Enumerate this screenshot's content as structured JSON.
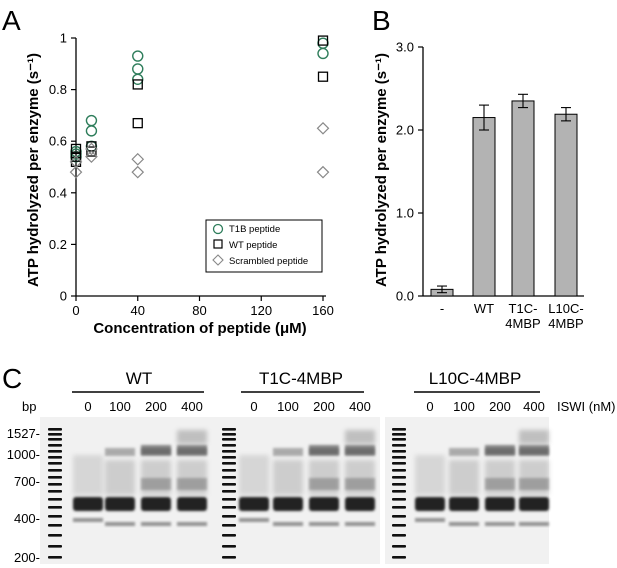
{
  "panels": {
    "a": "A",
    "b": "B",
    "c": "C"
  },
  "chart_data": [
    {
      "type": "scatter",
      "panel": "A",
      "xlabel": "Concentration of peptide (μM)",
      "ylabel": "ATP hydrolyzed per enzyme (s⁻¹)",
      "xlim": [
        0,
        160
      ],
      "ylim": [
        0,
        1
      ],
      "xticks": [
        "0",
        "40",
        "80",
        "120",
        "160"
      ],
      "yticks": [
        "0",
        "0.2",
        "0.4",
        "0.6",
        "0.8",
        "1"
      ],
      "legend_position": "bottom-right",
      "series": [
        {
          "name": "T1B peptide",
          "marker": "circle",
          "color": "#2e7d5b",
          "x": [
            0,
            0,
            0,
            10,
            10,
            10,
            40,
            40,
            40,
            160,
            160
          ],
          "y": [
            0.56,
            0.55,
            0.54,
            0.68,
            0.64,
            0.58,
            0.93,
            0.88,
            0.84,
            0.98,
            0.94
          ]
        },
        {
          "name": "WT peptide",
          "marker": "square",
          "color": "#000000",
          "x": [
            0,
            0,
            0,
            10,
            10,
            40,
            40,
            160,
            160
          ],
          "y": [
            0.57,
            0.54,
            0.52,
            0.58,
            0.56,
            0.82,
            0.67,
            0.99,
            0.85
          ]
        },
        {
          "name": "Scrambled peptide",
          "marker": "diamond",
          "color": "#888888",
          "x": [
            0,
            0,
            10,
            10,
            40,
            40,
            160,
            160
          ],
          "y": [
            0.52,
            0.48,
            0.57,
            0.54,
            0.53,
            0.48,
            0.65,
            0.48
          ]
        }
      ]
    },
    {
      "type": "bar",
      "panel": "B",
      "ylabel": "ATP hydrolyzed per enzyme (s⁻¹)",
      "ylim": [
        0,
        3
      ],
      "yticks": [
        "0.0",
        "1.0",
        "2.0",
        "3.0"
      ],
      "categories": [
        "-",
        "WT",
        "T1C-\n4MBP",
        "L10C-\n4MBP"
      ],
      "values": [
        0.08,
        2.15,
        2.35,
        2.19
      ],
      "errors": [
        0.04,
        0.15,
        0.08,
        0.08
      ],
      "color": "#b3b3b3"
    }
  ],
  "gel": {
    "bp_label": "bp",
    "bp_markers": [
      "1527",
      "1000",
      "700",
      "400",
      "200"
    ],
    "iswi_label": "ISWI (nM)",
    "groups": [
      {
        "name": "WT",
        "lanes": [
          "0",
          "100",
          "200",
          "400"
        ]
      },
      {
        "name": "T1C-4MBP",
        "lanes": [
          "0",
          "100",
          "200",
          "400"
        ]
      },
      {
        "name": "L10C-4MBP",
        "lanes": [
          "0",
          "100",
          "200",
          "400"
        ]
      }
    ]
  }
}
